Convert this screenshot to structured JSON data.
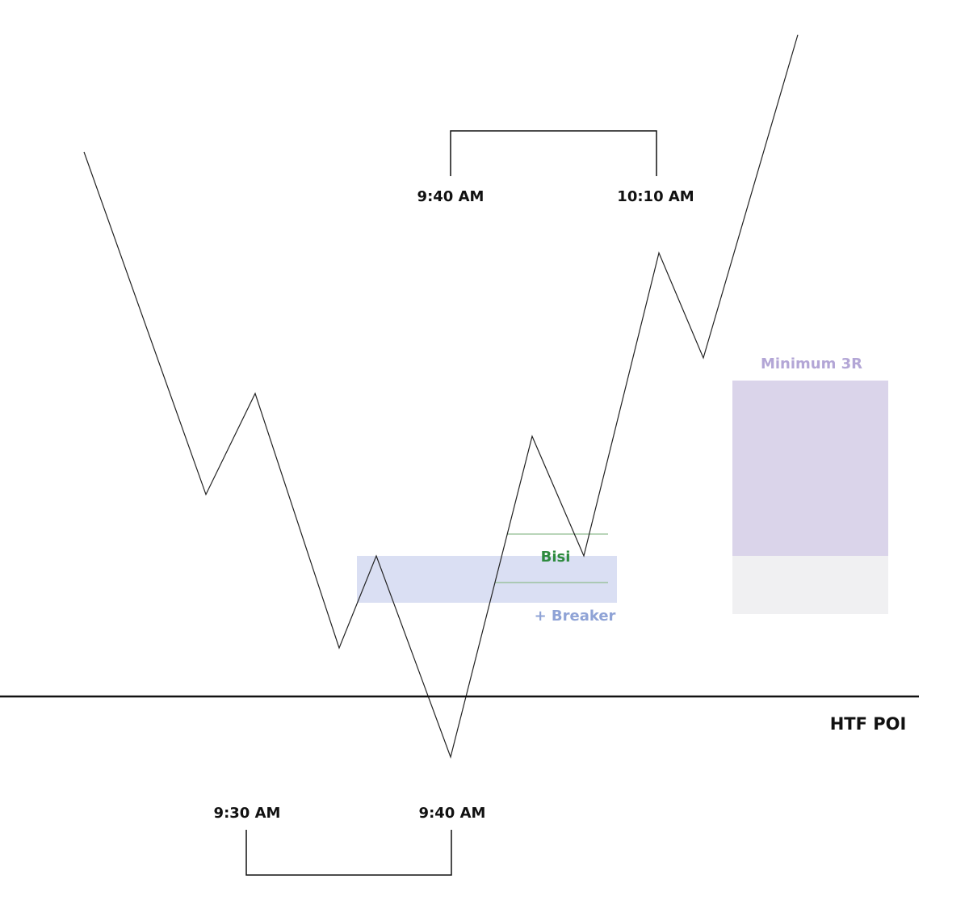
{
  "top_bracket": {
    "start": "9:40 AM",
    "end": "10:10 AM"
  },
  "target_box": {
    "label": "Minimum 3R"
  },
  "fvg": {
    "label": "Bisi"
  },
  "breaker": {
    "label": "+ Breaker"
  },
  "poi": {
    "label": "HTF POI"
  },
  "bottom_bracket": {
    "start": "9:30 AM",
    "end": "9:40 AM"
  }
}
